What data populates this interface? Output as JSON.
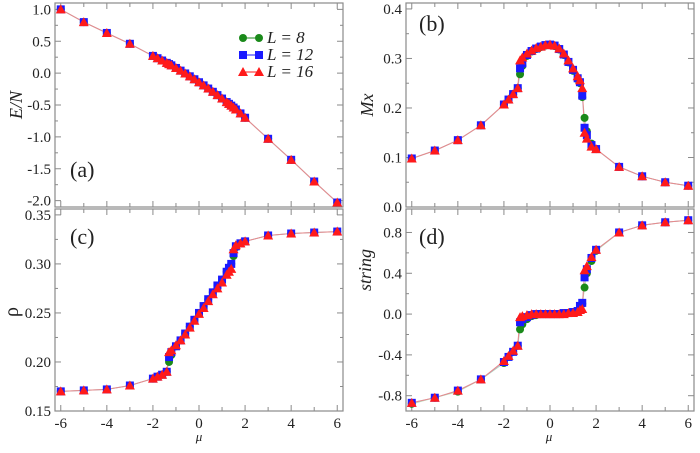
{
  "chart_data": [
    {
      "type": "line",
      "panel_label": "(a)",
      "ylabel": "E/N",
      "xlabel": "",
      "xlim": [
        -6.25,
        6.25
      ],
      "ylim": [
        -2.1,
        1.1
      ],
      "yticks": [
        "1.0",
        "0.5",
        "0.0",
        "-0.5",
        "-1.0",
        "-1.5",
        "-2.0"
      ],
      "ytick_values": [
        1.0,
        0.5,
        0.0,
        -0.5,
        -1.0,
        -1.5,
        -2.0
      ],
      "legend": {
        "placement": "top-right",
        "entries": [
          "L = 8",
          "L = 12",
          "L = 16"
        ]
      },
      "x": [
        -6,
        -5,
        -4,
        -3,
        -2,
        -1.8,
        -1.6,
        -1.4,
        -1.3,
        -1.2,
        -1.0,
        -0.8,
        -0.6,
        -0.4,
        -0.2,
        0,
        0.2,
        0.4,
        0.6,
        0.8,
        1.0,
        1.2,
        1.3,
        1.4,
        1.5,
        1.6,
        1.8,
        2,
        3,
        4,
        5,
        6
      ],
      "series": [
        {
          "name": "L = 8",
          "values": [
            1.0,
            0.8,
            0.63,
            0.46,
            0.27,
            0.234,
            0.198,
            0.161,
            0.142,
            0.122,
            0.081,
            0.039,
            -0.005,
            -0.05,
            -0.096,
            -0.143,
            -0.192,
            -0.242,
            -0.293,
            -0.345,
            -0.399,
            -0.454,
            -0.482,
            -0.51,
            -0.54,
            -0.57,
            -0.632,
            -0.7,
            -1.03,
            -1.36,
            -1.7,
            -2.03
          ]
        },
        {
          "name": "L = 12",
          "values": [
            1.0,
            0.8,
            0.63,
            0.46,
            0.27,
            0.234,
            0.198,
            0.161,
            0.142,
            0.122,
            0.081,
            0.039,
            -0.005,
            -0.05,
            -0.096,
            -0.143,
            -0.192,
            -0.242,
            -0.293,
            -0.345,
            -0.399,
            -0.454,
            -0.482,
            -0.51,
            -0.54,
            -0.57,
            -0.632,
            -0.7,
            -1.03,
            -1.36,
            -1.7,
            -2.03
          ]
        },
        {
          "name": "L = 16",
          "values": [
            1.0,
            0.8,
            0.63,
            0.46,
            0.27,
            0.234,
            0.198,
            0.161,
            0.142,
            0.122,
            0.081,
            0.039,
            -0.005,
            -0.05,
            -0.096,
            -0.143,
            -0.192,
            -0.242,
            -0.293,
            -0.345,
            -0.399,
            -0.454,
            -0.482,
            -0.51,
            -0.54,
            -0.57,
            -0.632,
            -0.7,
            -1.03,
            -1.36,
            -1.7,
            -2.03
          ]
        }
      ]
    },
    {
      "type": "line",
      "panel_label": "(b)",
      "ylabel": "Mx",
      "xlabel": "",
      "xlim": [
        -6.25,
        6.25
      ],
      "ylim": [
        0.0,
        0.412
      ],
      "yticks": [
        "0.4",
        "0.3",
        "0.2",
        "0.1",
        "0.0"
      ],
      "ytick_values": [
        0.4,
        0.3,
        0.2,
        0.1,
        0.0
      ],
      "x": [
        -6,
        -5,
        -4,
        -3,
        -2,
        -1.8,
        -1.6,
        -1.4,
        -1.3,
        -1.2,
        -1.0,
        -0.8,
        -0.6,
        -0.4,
        -0.2,
        0,
        0.2,
        0.4,
        0.6,
        0.8,
        1.0,
        1.2,
        1.3,
        1.4,
        1.5,
        1.6,
        1.8,
        2,
        3,
        4,
        5,
        6
      ],
      "series": [
        {
          "name": "L = 8",
          "values": [
            0.098,
            0.114,
            0.135,
            0.165,
            0.207,
            0.217,
            0.228,
            0.24,
            0.268,
            0.285,
            0.305,
            0.314,
            0.319,
            0.323,
            0.326,
            0.327,
            0.325,
            0.318,
            0.307,
            0.292,
            0.275,
            0.258,
            0.25,
            0.222,
            0.18,
            0.153,
            0.128,
            0.117,
            0.081,
            0.062,
            0.05,
            0.043
          ]
        },
        {
          "name": "L = 12",
          "values": [
            0.098,
            0.114,
            0.135,
            0.165,
            0.207,
            0.217,
            0.228,
            0.24,
            0.28,
            0.29,
            0.307,
            0.315,
            0.32,
            0.324,
            0.327,
            0.328,
            0.326,
            0.319,
            0.308,
            0.293,
            0.277,
            0.26,
            0.252,
            0.225,
            0.16,
            0.145,
            0.125,
            0.117,
            0.081,
            0.062,
            0.05,
            0.043
          ]
        },
        {
          "name": "L = 16",
          "values": [
            0.098,
            0.114,
            0.135,
            0.165,
            0.207,
            0.217,
            0.228,
            0.24,
            0.296,
            0.302,
            0.31,
            0.316,
            0.321,
            0.324,
            0.327,
            0.328,
            0.326,
            0.32,
            0.31,
            0.296,
            0.28,
            0.264,
            0.256,
            0.24,
            0.15,
            0.138,
            0.122,
            0.117,
            0.081,
            0.062,
            0.05,
            0.043
          ]
        }
      ]
    },
    {
      "type": "line",
      "panel_label": "(c)",
      "ylabel": "ρ",
      "xlabel": "μ",
      "xlim": [
        -6.25,
        6.25
      ],
      "ylim": [
        0.15,
        0.356
      ],
      "yticks": [
        "0.35",
        "0.30",
        "0.25",
        "0.20",
        "0.15"
      ],
      "ytick_values": [
        0.35,
        0.3,
        0.25,
        0.2,
        0.15
      ],
      "xticks": [
        "-6",
        "-4",
        "-2",
        "0",
        "2",
        "4",
        "6"
      ],
      "xtick_values": [
        -6,
        -4,
        -2,
        0,
        2,
        4,
        6
      ],
      "x": [
        -6,
        -5,
        -4,
        -3,
        -2,
        -1.8,
        -1.6,
        -1.4,
        -1.3,
        -1.2,
        -1.0,
        -0.8,
        -0.6,
        -0.4,
        -0.2,
        0,
        0.2,
        0.4,
        0.6,
        0.8,
        1.0,
        1.2,
        1.3,
        1.4,
        1.5,
        1.6,
        1.8,
        2,
        3,
        4,
        5,
        6
      ],
      "series": [
        {
          "name": "L = 8",
          "values": [
            0.17,
            0.171,
            0.172,
            0.176,
            0.183,
            0.185,
            0.187,
            0.19,
            0.2,
            0.207,
            0.216,
            0.222,
            0.229,
            0.236,
            0.243,
            0.25,
            0.257,
            0.264,
            0.271,
            0.278,
            0.284,
            0.292,
            0.296,
            0.3,
            0.308,
            0.317,
            0.321,
            0.323,
            0.329,
            0.331,
            0.332,
            0.333
          ]
        },
        {
          "name": "L = 12",
          "values": [
            0.17,
            0.171,
            0.172,
            0.176,
            0.183,
            0.185,
            0.187,
            0.19,
            0.205,
            0.21,
            0.216,
            0.222,
            0.229,
            0.236,
            0.243,
            0.25,
            0.257,
            0.264,
            0.271,
            0.278,
            0.284,
            0.292,
            0.296,
            0.3,
            0.311,
            0.318,
            0.321,
            0.323,
            0.329,
            0.331,
            0.332,
            0.333
          ]
        },
        {
          "name": "L = 16",
          "values": [
            0.17,
            0.171,
            0.172,
            0.176,
            0.183,
            0.185,
            0.187,
            0.19,
            0.21,
            0.212,
            0.217,
            0.222,
            0.228,
            0.235,
            0.242,
            0.249,
            0.255,
            0.262,
            0.269,
            0.275,
            0.281,
            0.289,
            0.292,
            0.295,
            0.315,
            0.319,
            0.321,
            0.323,
            0.329,
            0.331,
            0.332,
            0.333
          ]
        }
      ]
    },
    {
      "type": "line",
      "panel_label": "(d)",
      "ylabel": "string",
      "xlabel": "μ",
      "xlim": [
        -6.25,
        6.25
      ],
      "ylim": [
        -0.95,
        1.03
      ],
      "yticks": [
        "0.8",
        "0.4",
        "0.0",
        "-0.4",
        "-0.8"
      ],
      "ytick_values": [
        0.8,
        0.4,
        0.0,
        -0.4,
        -0.8
      ],
      "xticks": [
        "-6",
        "-4",
        "-2",
        "0",
        "2",
        "4",
        "6"
      ],
      "xtick_values": [
        -6,
        -4,
        -2,
        0,
        2,
        4,
        6
      ],
      "x": [
        -6,
        -5,
        -4,
        -3,
        -2,
        -1.8,
        -1.6,
        -1.4,
        -1.3,
        -1.2,
        -1.0,
        -0.8,
        -0.6,
        -0.4,
        -0.2,
        0,
        0.2,
        0.4,
        0.6,
        0.8,
        1.0,
        1.2,
        1.3,
        1.4,
        1.5,
        1.6,
        1.8,
        2,
        3,
        4,
        5,
        6
      ],
      "series": [
        {
          "name": "L = 8",
          "values": [
            -0.88,
            -0.82,
            -0.76,
            -0.64,
            -0.48,
            -0.42,
            -0.37,
            -0.31,
            -0.15,
            -0.1,
            -0.05,
            -0.02,
            -0.01,
            0.0,
            0.0,
            0.0,
            0.0,
            0.0,
            0.01,
            0.01,
            0.02,
            0.03,
            0.06,
            0.1,
            0.26,
            0.4,
            0.52,
            0.62,
            0.8,
            0.87,
            0.9,
            0.92
          ]
        },
        {
          "name": "L = 12",
          "values": [
            -0.87,
            -0.82,
            -0.75,
            -0.64,
            -0.47,
            -0.42,
            -0.37,
            -0.31,
            -0.08,
            -0.05,
            -0.03,
            -0.01,
            0.0,
            0.0,
            0.0,
            0.0,
            0.0,
            0.0,
            0.01,
            0.01,
            0.02,
            0.03,
            0.08,
            0.11,
            0.36,
            0.44,
            0.55,
            0.63,
            0.8,
            0.87,
            0.9,
            0.92
          ]
        },
        {
          "name": "L = 16",
          "values": [
            -0.87,
            -0.82,
            -0.75,
            -0.64,
            -0.46,
            -0.41,
            -0.36,
            -0.31,
            -0.03,
            -0.02,
            -0.01,
            0.0,
            0.0,
            0.0,
            0.0,
            0.0,
            0.0,
            0.0,
            0.0,
            0.01,
            0.01,
            0.02,
            0.04,
            0.05,
            0.43,
            0.47,
            0.56,
            0.63,
            0.8,
            0.87,
            0.9,
            0.92
          ]
        }
      ]
    }
  ],
  "colors": {
    "L8": "#1a8a1a",
    "L12": "#1a1aff",
    "L16": "#ff1a1a",
    "line": "#e88a8a",
    "axis": "#8a8a8a"
  }
}
